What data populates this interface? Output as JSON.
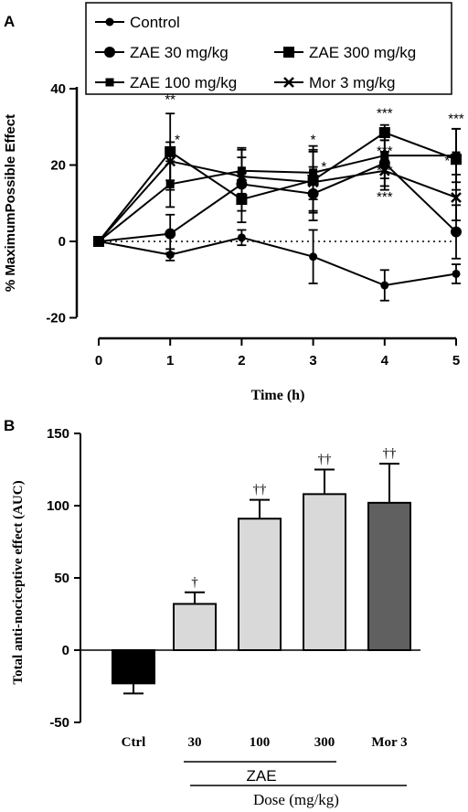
{
  "panels": {
    "a_label": "A",
    "b_label": "B"
  },
  "chart_data": [
    {
      "type": "line",
      "xlabel": "Time (h)",
      "ylabel": "% MaximumPossible Effect",
      "x": [
        0,
        1,
        2,
        3,
        4,
        5
      ],
      "xticks": [
        "0",
        "1",
        "2",
        "3",
        "4",
        "5"
      ],
      "yticks": [
        "-20",
        "0",
        "20",
        "40"
      ],
      "ylim": [
        -20,
        40
      ],
      "xlim": [
        0,
        5
      ],
      "legend_position": "top",
      "reference_line": {
        "y": 0,
        "style": "dotted"
      },
      "series": [
        {
          "name": "Control",
          "marker": "circle-small",
          "values": [
            0,
            -3.5,
            1,
            -4,
            -11.5,
            -8.5
          ],
          "errors": [
            0,
            1.5,
            2,
            7,
            4,
            2.5
          ]
        },
        {
          "name": "ZAE 30 mg/kg",
          "marker": "circle",
          "values": [
            0,
            2,
            15,
            12.5,
            20.5,
            2.5
          ],
          "errors": [
            0,
            5,
            7,
            7,
            6,
            7
          ]
        },
        {
          "name": "ZAE 100 mg/kg",
          "marker": "square-small",
          "values": [
            0,
            15,
            18.5,
            18,
            22.5,
            22.5
          ],
          "errors": [
            0,
            6,
            6,
            7,
            6,
            7
          ]
        },
        {
          "name": "ZAE 300 mg/kg",
          "marker": "square",
          "values": [
            0,
            23.5,
            11,
            16,
            28.5,
            21.5
          ],
          "errors": [
            0,
            10,
            6,
            8,
            2,
            8
          ]
        },
        {
          "name": "Mor 3 mg/kg",
          "marker": "x",
          "values": [
            0,
            21,
            17,
            15.5,
            18.5,
            11.5
          ],
          "errors": [
            0,
            5,
            7,
            8,
            5,
            6
          ]
        }
      ],
      "annotations": [
        {
          "x": 1,
          "y": 36,
          "text": "**"
        },
        {
          "x": 1.1,
          "y": 25.5,
          "text": "*"
        },
        {
          "x": 3,
          "y": 25.5,
          "text": "*"
        },
        {
          "x": 3.15,
          "y": 18.5,
          "text": "*"
        },
        {
          "x": 2.95,
          "y": 15.5,
          "text": "*"
        },
        {
          "x": 4,
          "y": 32.5,
          "text": "***"
        },
        {
          "x": 4,
          "y": 22.5,
          "text": "***"
        },
        {
          "x": 4,
          "y": 17.5,
          "text": "***"
        },
        {
          "x": 4,
          "y": 10.5,
          "text": "***"
        },
        {
          "x": 5,
          "y": 31,
          "text": "***"
        },
        {
          "x": 4.95,
          "y": 20,
          "text": "***"
        }
      ]
    },
    {
      "type": "bar",
      "ylabel": "Total anti-nociceptive effect (AUC)",
      "categories": [
        "Ctrl",
        "30",
        "100",
        "300",
        "Mor 3"
      ],
      "values": [
        -23,
        32,
        91,
        108,
        102
      ],
      "errors": [
        7,
        8,
        13,
        17,
        27
      ],
      "significance": [
        "",
        "†",
        "††",
        "††",
        "††"
      ],
      "colors": [
        "#000000",
        "#d9d9d9",
        "#d9d9d9",
        "#d9d9d9",
        "#606060"
      ],
      "yticks": [
        "-50",
        "0",
        "50",
        "100",
        "150"
      ],
      "ylim": [
        -50,
        150
      ],
      "group_label": "ZAE",
      "dose_label": "Dose (mg/kg)"
    }
  ]
}
